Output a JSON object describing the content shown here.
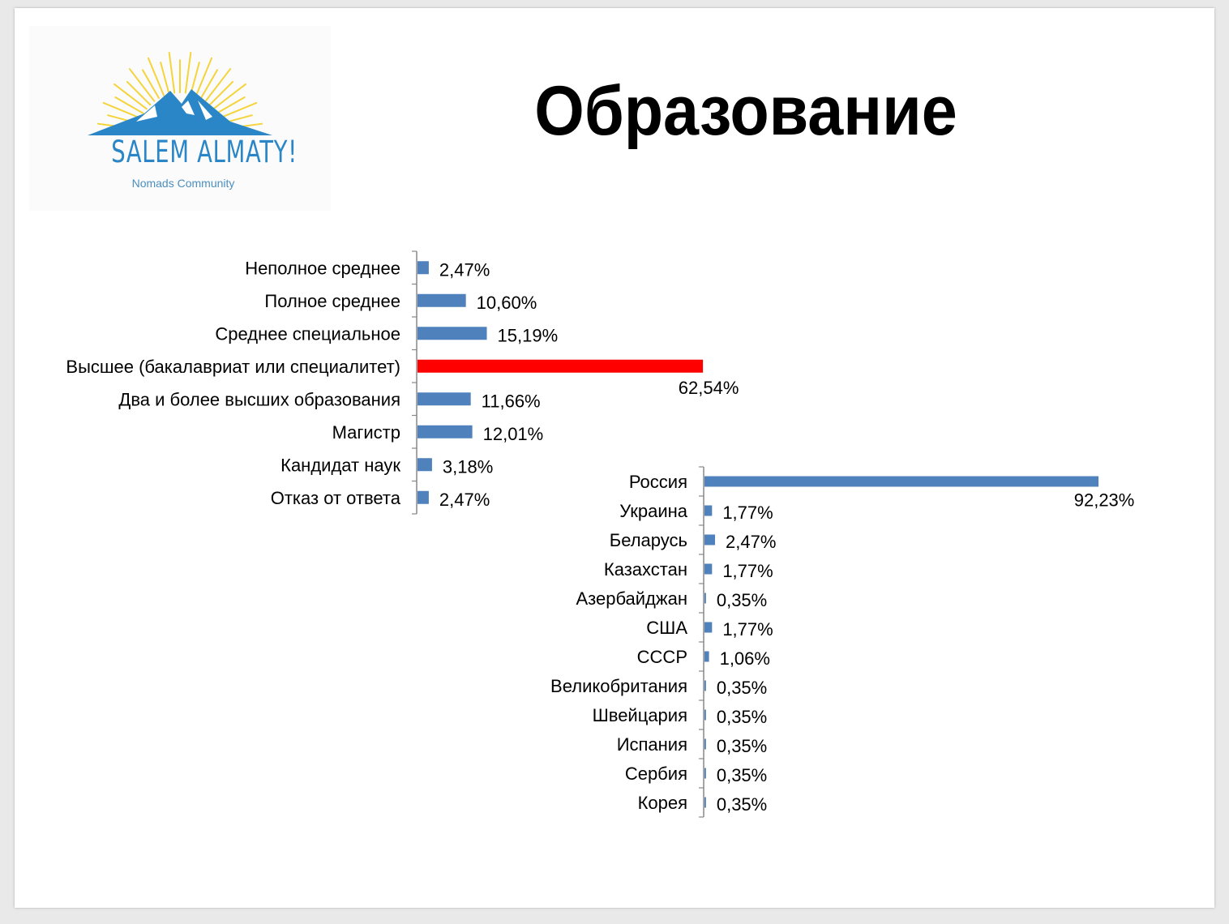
{
  "slide": {
    "title": "Образование",
    "logo": {
      "name": "SALEM ALMATY!",
      "tagline": "Nomads Community"
    }
  },
  "colors": {
    "bar": "#4f81bd",
    "highlight": "#ff0000",
    "axis": "#888888",
    "sun": "#f4d43a",
    "mountain": "#2a86c6"
  },
  "chart_data": [
    {
      "type": "bar",
      "orientation": "horizontal",
      "title": "",
      "categories": [
        "Неполное среднее",
        "Полное среднее",
        "Среднее специальное",
        "Высшее (бакалавриат или специалитет)",
        "Два и более высших образования",
        "Магистр",
        "Кандидат наук",
        "Отказ от ответа"
      ],
      "values": [
        2.47,
        10.6,
        15.19,
        62.54,
        11.66,
        12.01,
        3.18,
        2.47
      ],
      "value_labels": [
        "2,47%",
        "10,60%",
        "15,19%",
        "62,54%",
        "11,66%",
        "12,01%",
        "3,18%",
        "2,47%"
      ],
      "highlight": "Высшее (бакалавриат или специалитет)",
      "xlim": [
        0,
        100
      ],
      "grid": false,
      "legend": "none"
    },
    {
      "type": "bar",
      "orientation": "horizontal",
      "title": "",
      "categories": [
        "Россия",
        "Украина",
        "Беларусь",
        "Казахстан",
        "Азербайджан",
        "США",
        "СССР",
        "Великобритания",
        "Швейцария",
        "Испания",
        "Сербия",
        "Корея"
      ],
      "values": [
        92.23,
        1.77,
        2.47,
        1.77,
        0.35,
        1.77,
        1.06,
        0.35,
        0.35,
        0.35,
        0.35,
        0.35
      ],
      "value_labels": [
        "92,23%",
        "1,77%",
        "2,47%",
        "1,77%",
        "0,35%",
        "1,77%",
        "1,06%",
        "0,35%",
        "0,35%",
        "0,35%",
        "0,35%",
        "0,35%"
      ],
      "xlim": [
        0,
        100
      ],
      "grid": false,
      "legend": "none"
    }
  ]
}
